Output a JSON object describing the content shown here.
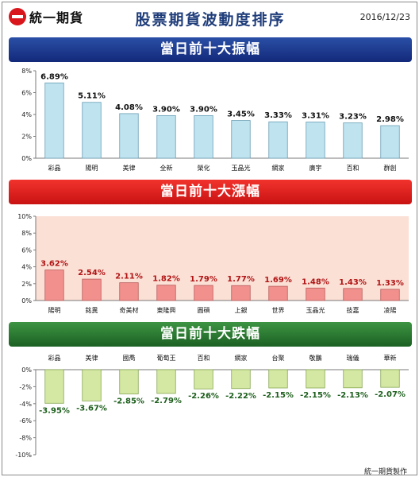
{
  "header": {
    "logo_text": "統一期貨",
    "title": "股票期貨波動度排序",
    "date": "2016/12/23"
  },
  "sections": {
    "amplitude_title": "當日前十大振幅",
    "gainers_title": "當日前十大漲幅",
    "losers_title": "當日前十大跌幅"
  },
  "footer": {
    "credit": "統一期貨製作"
  },
  "colors": {
    "amplitude_bar": "#bfe3ef",
    "gainers_bar": "#f2908e",
    "losers_bar": "#d5e8a3",
    "amplitude_plot_bg": "#ffffff",
    "gainers_plot_bg": "#fbe0d6",
    "losers_plot_bg": "#ffffff",
    "gainers_label": "#b01414",
    "losers_label": "#1c5e1c"
  },
  "chart_data": [
    {
      "type": "bar",
      "categories": [
        "彩晶",
        "陽明",
        "美律",
        "全新",
        "榮化",
        "玉晶光",
        "網家",
        "廣宇",
        "百和",
        "群創"
      ],
      "values": [
        6.89,
        5.11,
        4.08,
        3.9,
        3.9,
        3.45,
        3.33,
        3.31,
        3.23,
        2.98
      ],
      "value_labels": [
        "6.89%",
        "5.11%",
        "4.08%",
        "3.90%",
        "3.90%",
        "3.45%",
        "3.33%",
        "3.31%",
        "3.23%",
        "2.98%"
      ],
      "ylim": [
        0,
        8
      ],
      "ticks": [
        0,
        2,
        4,
        6,
        8
      ],
      "tick_labels": [
        "0%",
        "2%",
        "4%",
        "6%",
        "8%"
      ],
      "category_position": "bottom",
      "grid": false
    },
    {
      "type": "bar",
      "categories": [
        "陽明",
        "銘異",
        "奇美材",
        "東隆興",
        "圓碩",
        "上銀",
        "世界",
        "玉晶光",
        "技嘉",
        "凌陽"
      ],
      "values": [
        3.62,
        2.54,
        2.11,
        1.82,
        1.79,
        1.77,
        1.69,
        1.48,
        1.43,
        1.33
      ],
      "value_labels": [
        "3.62%",
        "2.54%",
        "2.11%",
        "1.82%",
        "1.79%",
        "1.77%",
        "1.69%",
        "1.48%",
        "1.43%",
        "1.33%"
      ],
      "ylim": [
        0,
        10
      ],
      "ticks": [
        0,
        2,
        4,
        6,
        8,
        10
      ],
      "tick_labels": [
        "0%",
        "2%",
        "4%",
        "6%",
        "8%",
        "10%"
      ],
      "category_position": "bottom",
      "grid": false
    },
    {
      "type": "bar",
      "categories": [
        "彩晶",
        "美律",
        "國喬",
        "葡萄王",
        "百和",
        "網家",
        "台聚",
        "敬鵬",
        "瑞儀",
        "華新"
      ],
      "values": [
        -3.95,
        -3.67,
        -2.85,
        -2.79,
        -2.26,
        -2.22,
        -2.15,
        -2.15,
        -2.13,
        -2.07
      ],
      "value_labels": [
        "-3.95%",
        "-3.67%",
        "-2.85%",
        "-2.79%",
        "-2.26%",
        "-2.22%",
        "-2.15%",
        "-2.15%",
        "-2.13%",
        "-2.07%"
      ],
      "ylim": [
        -10,
        0
      ],
      "ticks": [
        0,
        -2,
        -4,
        -6,
        -8,
        -10
      ],
      "tick_labels": [
        "0%",
        "-2%",
        "-4%",
        "-6%",
        "-8%",
        "-10%"
      ],
      "category_position": "top",
      "grid": false
    }
  ]
}
